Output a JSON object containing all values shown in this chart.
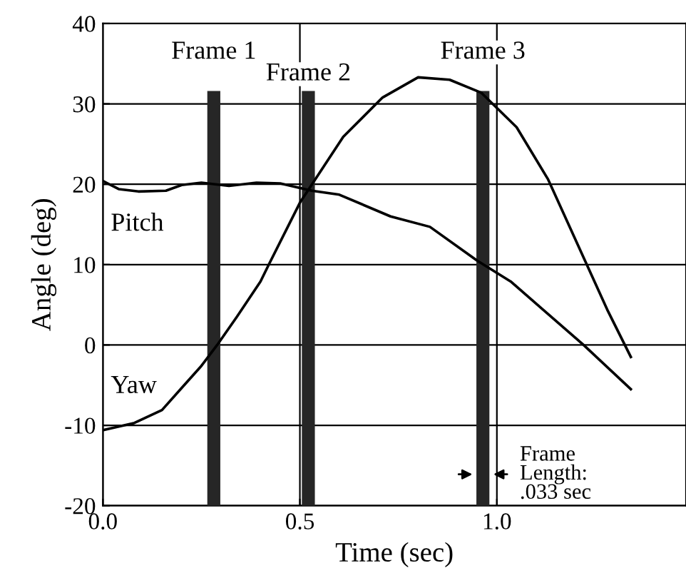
{
  "chart_data": {
    "type": "line",
    "xlabel": "Time (sec)",
    "ylabel": "Angle (deg)",
    "xlim": [
      0,
      1.48
    ],
    "xticks": [
      {
        "value": 0,
        "label": "0.0"
      },
      0.5,
      {
        "value": 1,
        "label": "1.0"
      }
    ],
    "ylim": [
      -20,
      40
    ],
    "yticks": [
      -20,
      -10,
      0,
      10,
      20,
      30,
      40
    ],
    "grid": true,
    "marker": "none",
    "line_style": "solid",
    "series": [
      {
        "name": "Pitch",
        "color": "#000000",
        "x": [
          0,
          0.04,
          0.09,
          0.16,
          0.2,
          0.25,
          0.32,
          0.39,
          0.45,
          0.53,
          0.6,
          0.73,
          0.83,
          0.95,
          1.035,
          1.22,
          1.34
        ],
        "values": [
          20.4,
          19.4,
          19.1,
          19.2,
          19.9,
          20.2,
          19.8,
          20.2,
          20.1,
          19.2,
          18.7,
          16.0,
          14.7,
          10.5,
          7.9,
          0,
          -5.5
        ]
      },
      {
        "name": "Yaw",
        "color": "#000000",
        "x": [
          0,
          0.08,
          0.15,
          0.25,
          0.29,
          0.34,
          0.4,
          0.42,
          0.5,
          0.61,
          0.71,
          0.8,
          0.88,
          0.96,
          1.05,
          1.13,
          1.28,
          1.34
        ],
        "values": [
          -10.6,
          -9.7,
          -8.1,
          -2.6,
          0,
          3.5,
          7.9,
          9.9,
          17.7,
          25.9,
          30.8,
          33.3,
          33.0,
          31.4,
          27.1,
          20.6,
          4.4,
          -1.5
        ]
      }
    ],
    "bands": [
      {
        "axis": "x",
        "from": 0.265,
        "to": 0.298,
        "label": "Frame 1",
        "color": "#262626"
      },
      {
        "axis": "x",
        "from": 0.505,
        "to": 0.538,
        "label": "Frame 2",
        "color": "#262626"
      },
      {
        "axis": "x",
        "from": 0.948,
        "to": 0.981,
        "label": "Frame 3",
        "color": "#262626"
      }
    ],
    "annotations": [
      "Frame\nLength:\n.033 sec"
    ]
  }
}
